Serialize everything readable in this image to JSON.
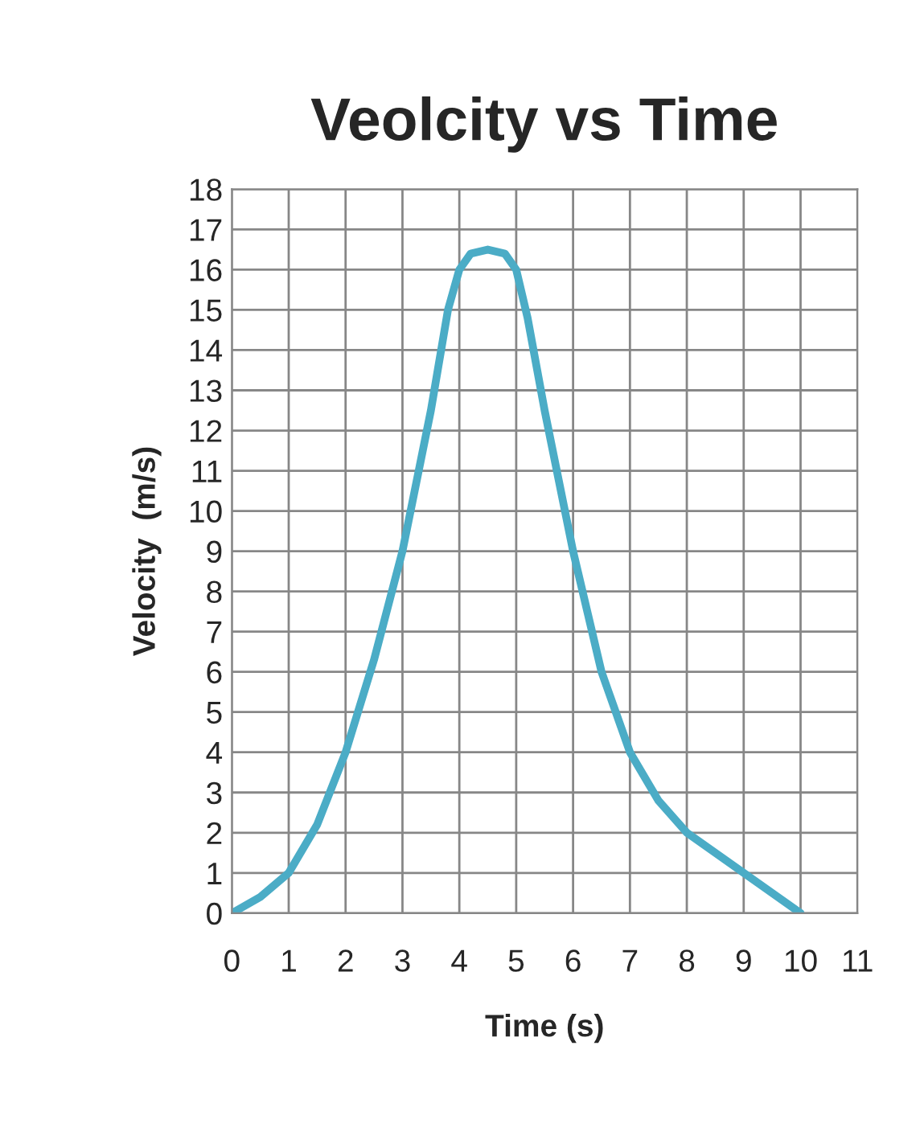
{
  "chart_data": {
    "type": "line",
    "title": "Veolcity vs Time",
    "xlabel": "Time (s)",
    "ylabel": "Velocity  (m/s)",
    "x": [
      0,
      0.5,
      1,
      1.5,
      2,
      2.5,
      3,
      3.5,
      3.8,
      4,
      4.2,
      4.5,
      4.8,
      5,
      5.2,
      5.5,
      6,
      6.5,
      7,
      7.5,
      8,
      8.5,
      9,
      9.5,
      10
    ],
    "series": [
      {
        "color": "#4bacc6",
        "values": [
          0,
          0.4,
          1,
          2.2,
          4,
          6.3,
          9,
          12.5,
          15,
          16,
          16.4,
          16.5,
          16.4,
          16,
          14.8,
          12.5,
          9,
          6,
          4,
          2.8,
          2,
          1.5,
          1,
          0.5,
          0
        ]
      }
    ],
    "xlim": [
      0,
      11
    ],
    "xticks": [
      0,
      1,
      2,
      3,
      4,
      5,
      6,
      7,
      8,
      9,
      10,
      11
    ],
    "ylim": [
      0,
      18
    ],
    "yticks": [
      0,
      1,
      2,
      3,
      4,
      5,
      6,
      7,
      8,
      9,
      10,
      11,
      12,
      13,
      14,
      15,
      16,
      17,
      18
    ],
    "grid": true,
    "legend": false,
    "marker": "none",
    "line_style": "solid"
  }
}
